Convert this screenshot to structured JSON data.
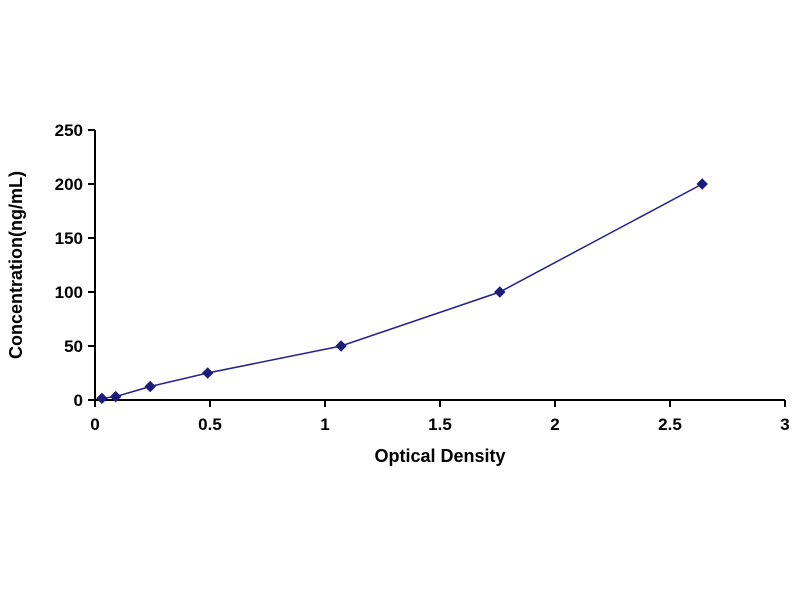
{
  "chart_data": {
    "type": "line",
    "title": "",
    "xlabel": "Optical Density",
    "ylabel": "Concentration(ng/mL)",
    "x": [
      0.03,
      0.09,
      0.24,
      0.49,
      1.07,
      1.76,
      2.64
    ],
    "y": [
      1.56,
      3.12,
      12.5,
      25,
      50,
      100,
      200
    ],
    "xlim": [
      0,
      3
    ],
    "ylim": [
      0,
      250
    ],
    "xticks": [
      0,
      0.5,
      1,
      1.5,
      2,
      2.5,
      3
    ],
    "yticks": [
      0,
      50,
      100,
      150,
      200,
      250
    ],
    "grid": false,
    "legend": "none",
    "line_color": "#22228B",
    "marker": "diamond",
    "marker_color": "#1C1C7A",
    "axis_color": "#000000"
  }
}
